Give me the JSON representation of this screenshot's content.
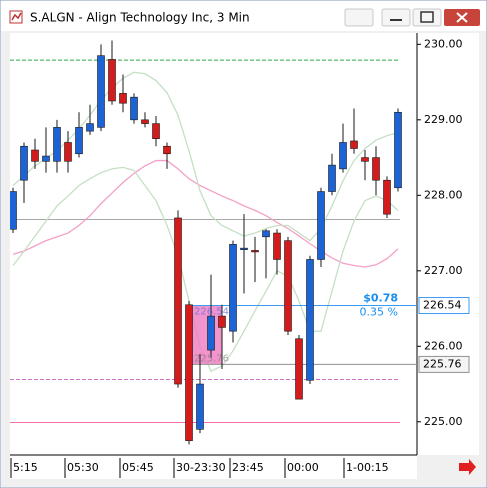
{
  "window": {
    "title": "S.ALGN - Align Technology Inc, 3 Min"
  },
  "chart_data": {
    "type": "candlestick",
    "up_color": "#1c64d6",
    "down_color": "#d41c1c",
    "open": [
      227.55,
      228.2,
      228.6,
      228.45,
      228.45,
      228.7,
      228.55,
      228.85,
      228.9,
      229.8,
      229.35,
      229.0,
      229.0,
      228.95,
      228.65,
      227.7,
      226.55,
      224.9,
      225.95,
      226.4,
      226.2,
      227.28,
      227.27,
      227.45,
      227.5,
      227.4,
      226.1,
      225.55,
      227.15,
      228.05,
      228.35,
      228.72,
      228.5,
      228.5,
      228.2,
      228.1
    ],
    "high": [
      228.1,
      228.7,
      228.75,
      228.9,
      229.0,
      228.85,
      229.1,
      229.2,
      230.0,
      230.05,
      229.6,
      229.35,
      229.1,
      229.05,
      228.7,
      227.8,
      226.6,
      225.9,
      226.95,
      226.55,
      227.4,
      227.75,
      227.45,
      227.55,
      227.55,
      227.45,
      226.15,
      227.2,
      228.1,
      228.55,
      228.95,
      229.15,
      228.6,
      228.65,
      228.25,
      229.15
    ],
    "low": [
      227.5,
      227.9,
      228.35,
      228.3,
      228.3,
      228.3,
      228.5,
      228.8,
      228.85,
      229.2,
      229.1,
      228.95,
      228.9,
      228.65,
      228.35,
      225.45,
      224.7,
      224.85,
      225.85,
      225.7,
      226.05,
      226.7,
      226.85,
      226.9,
      226.95,
      226.15,
      225.3,
      225.5,
      227.05,
      228.0,
      228.3,
      228.55,
      228.2,
      228.0,
      227.7,
      228.05
    ],
    "close": [
      228.05,
      228.65,
      228.45,
      228.52,
      228.9,
      228.45,
      228.9,
      228.95,
      229.85,
      229.25,
      229.22,
      229.3,
      228.95,
      228.75,
      228.55,
      225.5,
      224.75,
      225.5,
      226.4,
      226.25,
      227.35,
      227.3,
      227.25,
      227.53,
      227.15,
      226.2,
      225.3,
      227.15,
      228.05,
      228.4,
      228.7,
      228.62,
      228.45,
      228.2,
      227.75,
      229.1
    ],
    "overlays": [
      {
        "color": "#f4a0c8",
        "values": [
          227.22,
          227.26,
          227.33,
          227.4,
          227.45,
          227.5,
          227.6,
          227.73,
          227.89,
          228.03,
          228.17,
          228.29,
          228.39,
          228.46,
          228.46,
          228.35,
          228.22,
          228.13,
          228.06,
          227.99,
          227.93,
          227.86,
          227.8,
          227.73,
          227.64,
          227.56,
          227.46,
          227.36,
          227.26,
          227.17,
          227.1,
          227.07,
          227.05,
          227.08,
          227.16,
          227.29
        ]
      },
      {
        "color": "#c4e0c4",
        "values": [
          228.13,
          228.26,
          228.39,
          228.49,
          228.59,
          228.73,
          228.88,
          229.06,
          229.26,
          229.42,
          229.55,
          229.63,
          229.61,
          229.52,
          229.36,
          229.06,
          228.59,
          228.06,
          227.73,
          227.6,
          227.53,
          227.46,
          227.5,
          227.56,
          227.6,
          227.6,
          227.5,
          227.4,
          227.56,
          227.86,
          228.19,
          228.46,
          228.62,
          228.73,
          228.79,
          228.83
        ]
      },
      {
        "color": "#c4e0c4",
        "values": [
          227.07,
          227.26,
          227.46,
          227.66,
          227.86,
          227.99,
          228.13,
          228.22,
          228.3,
          228.35,
          228.37,
          228.33,
          228.13,
          227.93,
          227.6,
          227.2,
          226.6,
          226.0,
          225.67,
          225.74,
          225.94,
          226.2,
          226.47,
          226.73,
          227.0,
          226.93,
          226.6,
          226.2,
          226.2,
          226.73,
          227.26,
          227.66,
          227.93,
          227.99,
          227.93,
          227.8
        ]
      }
    ],
    "hlines": [
      {
        "value": 229.79,
        "color": "#2aa84a",
        "dash": true
      },
      {
        "value": 227.68,
        "color": "#a8a8a8",
        "dash": false
      },
      {
        "value": 225.56,
        "color": "#d070c0",
        "dash": true
      },
      {
        "value": 224.99,
        "color": "#f070b0",
        "dash": false
      }
    ],
    "ylim": [
      224.56,
      230.15
    ],
    "yticks": [
      {
        "value": 225,
        "label": "225.00"
      },
      {
        "value": 226,
        "label": "226.00"
      },
      {
        "value": 227,
        "label": "227.00"
      },
      {
        "value": 228,
        "label": "228.00"
      },
      {
        "value": 229,
        "label": "229.00"
      },
      {
        "value": 230,
        "label": "230.00"
      }
    ],
    "xtick_labels": [
      "5:15",
      "05:30",
      "05:45",
      "30-23:30",
      "23:45",
      "00:00",
      "1-00:15"
    ],
    "measure": {
      "top": {
        "value": 226.54,
        "label": "226.54"
      },
      "bottom": {
        "value": 225.76,
        "label": "225.76"
      },
      "change": "$0.78",
      "percent": "0.35 %"
    }
  }
}
